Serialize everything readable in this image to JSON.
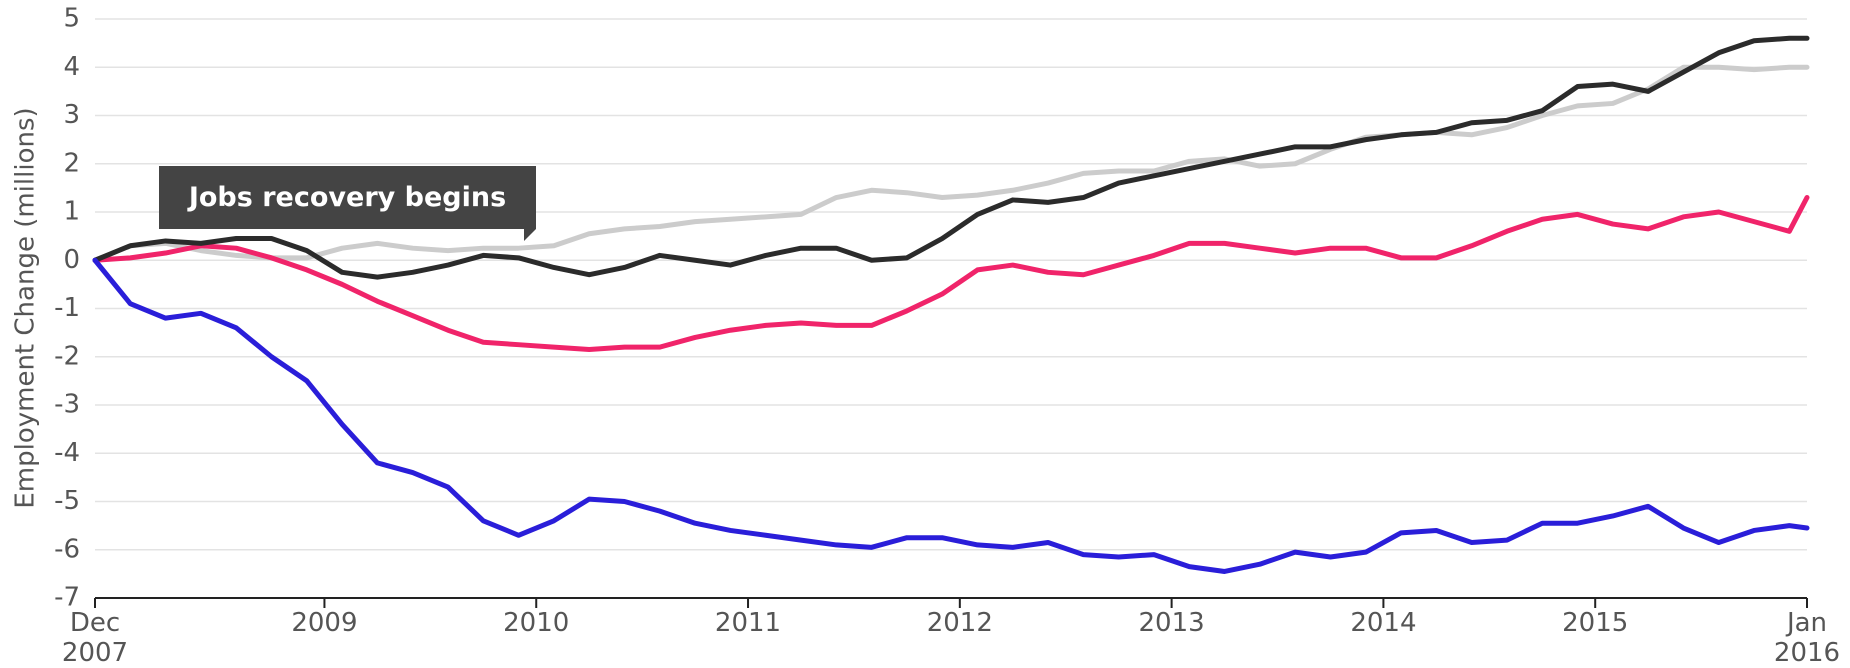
{
  "chart_data": {
    "type": "line",
    "ylabel": "Employment Change (millions)",
    "annotation": "Jobs recovery begins",
    "x": [
      "2007-12",
      "2008-02",
      "2008-04",
      "2008-06",
      "2008-08",
      "2008-10",
      "2008-12",
      "2009-02",
      "2009-04",
      "2009-06",
      "2009-08",
      "2009-10",
      "2009-12",
      "2010-02",
      "2010-04",
      "2010-06",
      "2010-08",
      "2010-10",
      "2010-12",
      "2011-02",
      "2011-04",
      "2011-06",
      "2011-08",
      "2011-10",
      "2011-12",
      "2012-02",
      "2012-04",
      "2012-06",
      "2012-08",
      "2012-10",
      "2012-12",
      "2013-02",
      "2013-04",
      "2013-06",
      "2013-08",
      "2013-10",
      "2013-12",
      "2014-02",
      "2014-04",
      "2014-06",
      "2014-08",
      "2014-10",
      "2014-12",
      "2015-02",
      "2015-04",
      "2015-06",
      "2015-08",
      "2015-10",
      "2015-12",
      "2016-01"
    ],
    "series": [
      {
        "color": "#cccccc",
        "values": [
          0,
          0.3,
          0.35,
          0.2,
          0.1,
          0.05,
          0.05,
          0.25,
          0.35,
          0.25,
          0.2,
          0.25,
          0.25,
          0.3,
          0.55,
          0.65,
          0.7,
          0.8,
          0.85,
          0.9,
          0.95,
          1.3,
          1.45,
          1.4,
          1.3,
          1.35,
          1.45,
          1.6,
          1.8,
          1.85,
          1.85,
          2.05,
          2.1,
          1.95,
          2.0,
          2.3,
          2.55,
          2.6,
          2.65,
          2.6,
          2.75,
          3.0,
          3.2,
          3.25,
          3.55,
          4.0,
          4.0,
          3.95,
          4.0,
          4.0
        ]
      },
      {
        "color": "#f0246a",
        "values": [
          0,
          0.05,
          0.15,
          0.3,
          0.25,
          0.05,
          -0.2,
          -0.5,
          -0.85,
          -1.15,
          -1.45,
          -1.7,
          -1.75,
          -1.8,
          -1.85,
          -1.8,
          -1.8,
          -1.6,
          -1.45,
          -1.35,
          -1.3,
          -1.35,
          -1.35,
          -1.05,
          -0.7,
          -0.2,
          -0.1,
          -0.25,
          -0.3,
          -0.1,
          0.1,
          0.35,
          0.35,
          0.25,
          0.15,
          0.25,
          0.25,
          0.05,
          0.05,
          0.3,
          0.6,
          0.85,
          0.95,
          0.75,
          0.65,
          0.9,
          1.0,
          0.8,
          0.6,
          1.3
        ]
      },
      {
        "color": "#2b2b2b",
        "values": [
          0,
          0.3,
          0.4,
          0.35,
          0.45,
          0.45,
          0.2,
          -0.25,
          -0.35,
          -0.25,
          -0.1,
          0.1,
          0.05,
          -0.15,
          -0.3,
          -0.15,
          0.1,
          0.0,
          -0.1,
          0.1,
          0.25,
          0.25,
          0.0,
          0.05,
          0.45,
          0.95,
          1.25,
          1.2,
          1.3,
          1.6,
          1.75,
          1.9,
          2.05,
          2.2,
          2.35,
          2.35,
          2.5,
          2.6,
          2.65,
          2.85,
          2.9,
          3.1,
          3.6,
          3.65,
          3.5,
          3.9,
          4.3,
          4.55,
          4.6,
          4.6
        ]
      },
      {
        "color": "#2a1ed9",
        "values": [
          0,
          -0.9,
          -1.2,
          -1.1,
          -1.4,
          -2.0,
          -2.5,
          -3.4,
          -4.2,
          -4.4,
          -4.7,
          -5.4,
          -5.7,
          -5.4,
          -4.95,
          -5.0,
          -5.2,
          -5.45,
          -5.6,
          -5.7,
          -5.8,
          -5.9,
          -5.95,
          -5.75,
          -5.75,
          -5.9,
          -5.95,
          -5.85,
          -6.1,
          -6.15,
          -6.1,
          -6.35,
          -6.45,
          -6.3,
          -6.05,
          -6.15,
          -6.05,
          -5.65,
          -5.6,
          -5.85,
          -5.8,
          -5.45,
          -5.45,
          -5.3,
          -5.1,
          -5.55,
          -5.85,
          -5.6,
          -5.5,
          -5.55
        ]
      }
    ],
    "xlim": [
      "2007-12",
      "2016-01"
    ],
    "xticks": [
      {
        "value": "2007-12",
        "label": "Dec\n2007"
      },
      {
        "value": "2009-01",
        "label": "2009"
      },
      {
        "value": "2010-01",
        "label": "2010"
      },
      {
        "value": "2011-01",
        "label": "2011"
      },
      {
        "value": "2012-01",
        "label": "2012"
      },
      {
        "value": "2013-01",
        "label": "2013"
      },
      {
        "value": "2014-01",
        "label": "2014"
      },
      {
        "value": "2015-01",
        "label": "2015"
      },
      {
        "value": "2016-01",
        "label": "Jan\n2016"
      }
    ],
    "ylim": [
      -7,
      5
    ],
    "yticks": [
      5,
      4,
      3,
      2,
      1,
      0,
      -1,
      -2,
      -3,
      -4,
      -5,
      -6,
      -7
    ],
    "grid": true
  }
}
